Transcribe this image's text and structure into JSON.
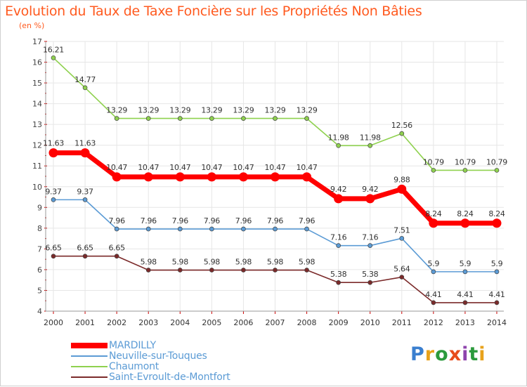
{
  "title": "Evolution du Taux de Taxe Foncière sur les Propriétés Non Bâties",
  "subtitle": "(en %)",
  "logo": {
    "text": "Proxiti",
    "letter_colors": [
      "#3a7fcf",
      "#e8a21b",
      "#2b9a3c",
      "#e74c1c",
      "#8e44ad",
      "#2b9a3c",
      "#e8a21b"
    ]
  },
  "chart_data": {
    "type": "line",
    "title": "Evolution du Taux de Taxe Foncière sur les Propriétés Non Bâties",
    "ylabel": "(en %)",
    "xlabel": "",
    "x": [
      "2000",
      "2001",
      "2002",
      "2003",
      "2004",
      "2005",
      "2006",
      "2007",
      "2008",
      "2009",
      "2010",
      "2011",
      "2012",
      "2013",
      "2014"
    ],
    "ylim": [
      4,
      17
    ],
    "yticks": [
      "4",
      "5",
      "6",
      "7",
      "8",
      "9",
      "10",
      "11",
      "12",
      "13",
      "14",
      "15",
      "16",
      "17"
    ],
    "grid": true,
    "legend_position": "bottom-left",
    "series": [
      {
        "name": "MARDILLY",
        "color": "#ff0000",
        "emphasis": true,
        "values": [
          11.63,
          11.63,
          10.47,
          10.47,
          10.47,
          10.47,
          10.47,
          10.47,
          10.47,
          9.42,
          9.42,
          9.88,
          8.24,
          8.24,
          8.24
        ],
        "labels": [
          "11.63",
          "11.63",
          "10.47",
          "10.47",
          "10.47",
          "10.47",
          "10.47",
          "10.47",
          "10.47",
          "9.42",
          "9.42",
          "9.88",
          "8.24",
          "8.24",
          "8.24"
        ]
      },
      {
        "name": "Neuville-sur-Touques",
        "color": "#5b9bd5",
        "emphasis": false,
        "values": [
          9.37,
          9.37,
          7.96,
          7.96,
          7.96,
          7.96,
          7.96,
          7.96,
          7.96,
          7.16,
          7.16,
          7.51,
          5.9,
          5.9,
          5.9
        ],
        "labels": [
          "9.37",
          "9.37",
          "7.96",
          "7.96",
          "7.96",
          "7.96",
          "7.96",
          "7.96",
          "7.96",
          "7.16",
          "7.16",
          "7.51",
          "5.9",
          "5.9",
          "5.9"
        ]
      },
      {
        "name": "Chaumont",
        "color": "#8fd14f",
        "emphasis": false,
        "values": [
          16.21,
          14.77,
          13.29,
          13.29,
          13.29,
          13.29,
          13.29,
          13.29,
          13.29,
          11.98,
          11.98,
          12.56,
          10.79,
          10.79,
          10.79
        ],
        "labels": [
          "16.21",
          "14.77",
          "13.29",
          "13.29",
          "13.29",
          "13.29",
          "13.29",
          "13.29",
          "13.29",
          "11.98",
          "11.98",
          "12.56",
          "10.79",
          "10.79",
          "10.79"
        ]
      },
      {
        "name": "Saint-Evroult-de-Montfort",
        "color": "#7b2a2a",
        "emphasis": false,
        "values": [
          6.65,
          6.65,
          6.65,
          5.98,
          5.98,
          5.98,
          5.98,
          5.98,
          5.98,
          5.38,
          5.38,
          5.64,
          4.41,
          4.41,
          4.41
        ],
        "labels": [
          "6.65",
          "6.65",
          "6.65",
          "5.98",
          "5.98",
          "5.98",
          "5.98",
          "5.98",
          "5.98",
          "5.38",
          "5.38",
          "5.64",
          "4.41",
          "4.41",
          "4.41"
        ]
      }
    ]
  }
}
